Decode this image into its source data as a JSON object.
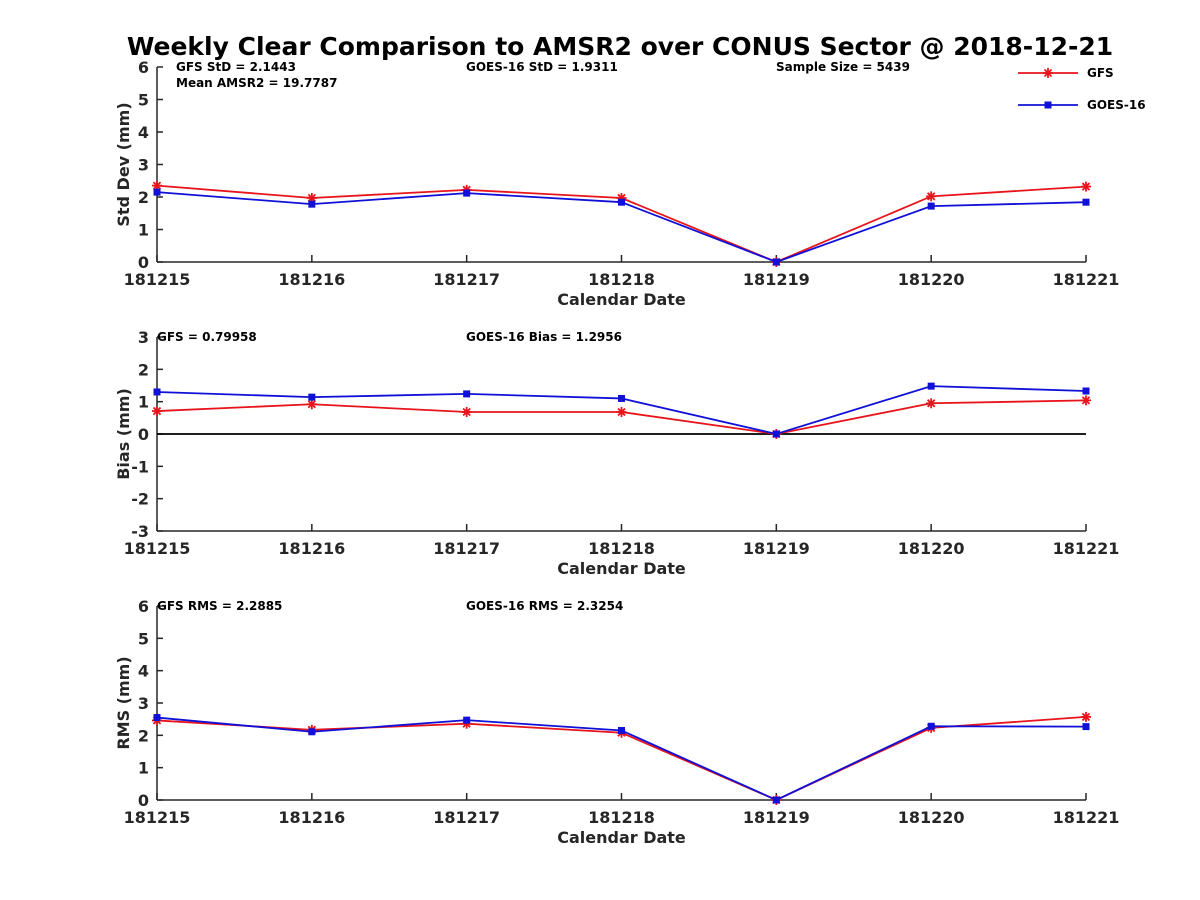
{
  "chart_data": {
    "title": "Weekly Clear Comparison to AMSR2 over CONUS Sector @ 2018-12-21",
    "legend": {
      "position": "top-right",
      "entries": [
        {
          "name": "GFS",
          "color": "#e8141b",
          "marker": "asterisk"
        },
        {
          "name": "GOES-16",
          "color": "#1010d8",
          "marker": "square"
        }
      ]
    },
    "panels": [
      {
        "type": "line",
        "ylabel": "Std Dev (mm)",
        "xlabel": "Calendar Date",
        "categories": [
          "181215",
          "181216",
          "181217",
          "181218",
          "181219",
          "181220",
          "181221"
        ],
        "ylim": [
          0,
          6
        ],
        "yticks": [
          "0",
          "1",
          "2",
          "3",
          "4",
          "5",
          "6"
        ],
        "zero_line": false,
        "annotations": [
          {
            "id": "gfs-std",
            "text": "GFS StD = 2.1443",
            "line": 1
          },
          {
            "id": "mean-amsr2",
            "text": "Mean AMSR2 = 19.7787",
            "line": 2
          },
          {
            "id": "goes-std",
            "text": "GOES-16 StD = 1.9311",
            "line": 1
          },
          {
            "id": "sample-size",
            "text": "Sample Size = 5439",
            "line": 1
          }
        ],
        "series": [
          {
            "name": "GFS",
            "values": [
              2.35,
              1.97,
              2.22,
              1.97,
              0.0,
              2.02,
              2.32
            ]
          },
          {
            "name": "GOES-16",
            "values": [
              2.15,
              1.78,
              2.12,
              1.84,
              0.0,
              1.72,
              1.84
            ]
          }
        ]
      },
      {
        "type": "line",
        "ylabel": "Bias (mm)",
        "xlabel": "Calendar Date",
        "categories": [
          "181215",
          "181216",
          "181217",
          "181218",
          "181219",
          "181220",
          "181221"
        ],
        "ylim": [
          -3,
          3
        ],
        "yticks": [
          "-3",
          "-2",
          "-1",
          "0",
          "1",
          "2",
          "3"
        ],
        "zero_line": true,
        "annotations": [
          {
            "id": "gfs-bias",
            "text": "GFS = 0.79958",
            "line": 1
          },
          {
            "id": "goes-bias",
            "text": "GOES-16 Bias  = 1.2956",
            "line": 1
          }
        ],
        "series": [
          {
            "name": "GFS",
            "values": [
              0.71,
              0.92,
              0.68,
              0.68,
              0.0,
              0.95,
              1.04
            ]
          },
          {
            "name": "GOES-16",
            "values": [
              1.3,
              1.14,
              1.24,
              1.1,
              0.0,
              1.48,
              1.33
            ]
          }
        ]
      },
      {
        "type": "line",
        "ylabel": "RMS (mm)",
        "xlabel": "Calendar Date",
        "categories": [
          "181215",
          "181216",
          "181217",
          "181218",
          "181219",
          "181220",
          "181221"
        ],
        "ylim": [
          0,
          6
        ],
        "yticks": [
          "0",
          "1",
          "2",
          "3",
          "4",
          "5",
          "6"
        ],
        "zero_line": false,
        "annotations": [
          {
            "id": "gfs-rms",
            "text": "GFS RMS = 2.2885",
            "line": 1
          },
          {
            "id": "goes-rms",
            "text": "GOES-16 RMS = 2.3254",
            "line": 1
          }
        ],
        "series": [
          {
            "name": "GFS",
            "values": [
              2.46,
              2.17,
              2.36,
              2.08,
              0.0,
              2.23,
              2.57
            ]
          },
          {
            "name": "GOES-16",
            "values": [
              2.55,
              2.11,
              2.47,
              2.15,
              0.0,
              2.28,
              2.27
            ]
          }
        ]
      }
    ]
  }
}
